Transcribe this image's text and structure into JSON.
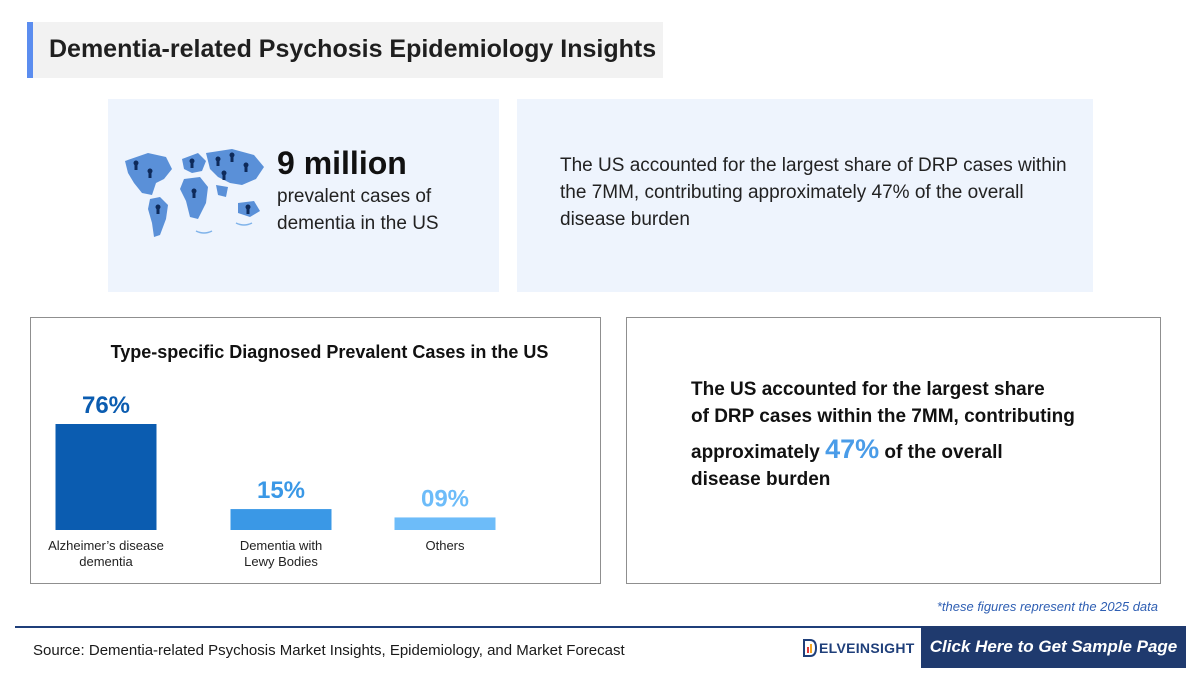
{
  "header": {
    "title": "Dementia-related Psychosis Epidemiology Insights"
  },
  "stat_card": {
    "icon": "world-map-people-icon",
    "value": "9 million",
    "caption": "prevalent cases of dementia in the US"
  },
  "share_card": {
    "text": "The US accounted for the largest share of DRP cases within the 7MM, contributing approximately 47% of the overall disease burden"
  },
  "chart_data": {
    "type": "bar",
    "title": "Type-specific Diagnosed Prevalent Cases in the US",
    "categories": [
      "Alzheimer’s disease dementia",
      "Dementia with Lewy Bodies",
      "Others"
    ],
    "category_lines": [
      [
        "Alzheimer’s disease",
        "dementia"
      ],
      [
        "Dementia with",
        "Lewy Bodies"
      ],
      [
        "Others"
      ]
    ],
    "values": [
      76,
      15,
      9
    ],
    "value_labels": [
      "76%",
      "15%",
      "09%"
    ],
    "colors": [
      "#0b5cb0",
      "#3a98e6",
      "#6dbcf9"
    ],
    "label_colors": [
      "#0b5cb0",
      "#3a98e6",
      "#6dbcf9"
    ],
    "unit": "%",
    "ylim": [
      0,
      76
    ],
    "grid": false,
    "legend": "none"
  },
  "highlight": {
    "line1": "The US accounted for the largest share",
    "line2": "of DRP cases within the 7MM, contributing",
    "line3_pre": "approximately ",
    "line3_value": "47%",
    "line3_post": " of the overall",
    "line4": "disease burden",
    "accent_color": "#4a9ce8"
  },
  "footnote": "*these figures represent the 2025 data",
  "footer": {
    "source": "Source: Dementia-related Psychosis Market Insights, Epidemiology, and Market Forecast",
    "logo_text": "ELVEINSIGHT",
    "logo_icon": "delveinsight-logo-icon",
    "cta_label": "Click Here to Get Sample Page"
  }
}
